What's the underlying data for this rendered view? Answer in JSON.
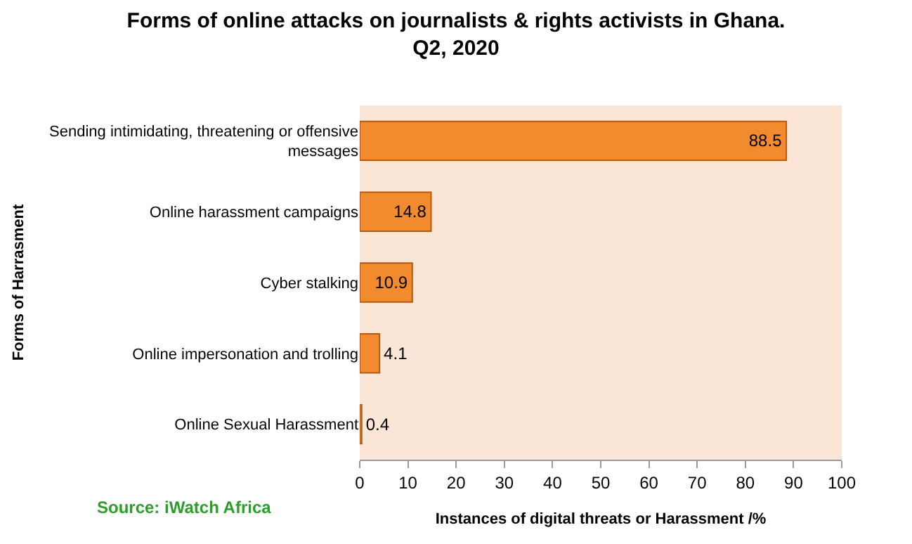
{
  "chart_data": {
    "type": "bar",
    "orientation": "horizontal",
    "title": "Forms of online attacks on journalists & rights activists in Ghana.\nQ2, 2020",
    "xlabel": "Instances of digital threats or Harassment /%",
    "ylabel": "Forms of Harrasment",
    "categories": [
      "Sending intimidating, threatening or offensive messages",
      "Online harassment campaigns",
      "Cyber stalking",
      "Online impersonation and trolling",
      "Online Sexual Harassment"
    ],
    "values": [
      88.5,
      14.8,
      10.9,
      4.1,
      0.4
    ],
    "color": "#f28a2e",
    "data_labels": true,
    "xlim": [
      0,
      100
    ],
    "xticks": [
      0,
      10,
      20,
      30,
      40,
      50,
      60,
      70,
      80,
      90,
      100
    ],
    "grid": false,
    "legend": false,
    "annotations": [
      "Source: iWatch Africa"
    ]
  }
}
